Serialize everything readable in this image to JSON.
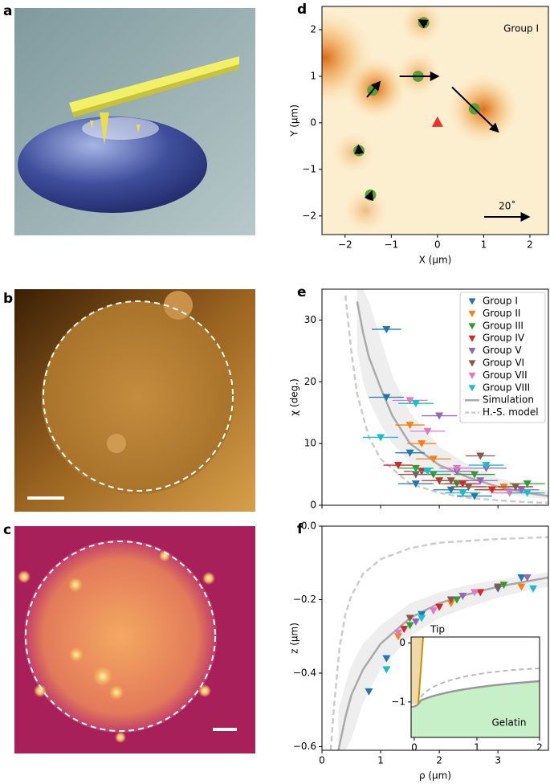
{
  "panel_labels": [
    "a",
    "b",
    "c"
  ],
  "chart_data": [
    {
      "type": "vector",
      "label": "d",
      "xlabel": "X (µm)",
      "ylabel": "Y (µm)",
      "annotation": "Group I",
      "xlim": [
        -2.5,
        2.4
      ],
      "ylim": [
        -2.4,
        2.5
      ],
      "xticks": [
        {
          "value": -2,
          "label": "−2"
        },
        {
          "value": -1,
          "label": "−1"
        },
        0,
        1,
        2
      ],
      "yticks": [
        {
          "value": -2,
          "label": "−2"
        },
        {
          "value": -1,
          "label": "−1"
        },
        0,
        1,
        2
      ],
      "points": {
        "color": "#5a9e3c",
        "x": [
          -0.3,
          -1.4,
          -0.42,
          0.8,
          -1.7,
          -1.45
        ],
        "y": [
          2.15,
          0.7,
          1.0,
          0.3,
          -0.6,
          -1.55
        ],
        "chi": [
          3,
          8,
          16,
          27,
          3,
          1.5
        ],
        "angle": [
          150,
          50,
          0,
          -44,
          95,
          70
        ]
      },
      "tip": {
        "x": 0,
        "y": 0,
        "color": "#e8322a"
      },
      "scale": {
        "value": 20,
        "label": "20˚"
      }
    },
    {
      "type": "errorbar",
      "label": "e",
      "ylabel": "χ (deg.)",
      "legend": "upper right",
      "xlim": [
        0,
        3.86
      ],
      "ylim": [
        0,
        35
      ],
      "xticks": [
        0,
        1,
        2,
        3
      ],
      "xticklabels": false,
      "yticks": [
        0,
        10,
        20,
        30
      ],
      "series": [
        {
          "name": "Group I",
          "color": "#1f77b4",
          "x": [
            1.1,
            1.1,
            1.5,
            1.6,
            2.2,
            2.6
          ],
          "values": [
            28.5,
            17.5,
            8.5,
            3.5,
            2.5,
            1.5
          ],
          "xerr": [
            0.25,
            0.3,
            0.25,
            0.3,
            0.3,
            0.3
          ]
        },
        {
          "name": "Group II",
          "color": "#ff7f0e",
          "x": [
            1.5,
            1.7,
            1.9,
            2.3,
            2.9,
            3.1
          ],
          "values": [
            13,
            10,
            7.5,
            3.5,
            2.5,
            3
          ],
          "xerr": [
            0.25,
            0.25,
            0.3,
            0.3,
            0.3,
            0.3
          ]
        },
        {
          "name": "Group III",
          "color": "#2ca02c",
          "x": [
            1.6,
            1.9,
            2.3,
            2.6,
            3.5
          ],
          "values": [
            6,
            5,
            3.5,
            5,
            3.5
          ],
          "xerr": [
            0.3,
            0.3,
            0.3,
            0.35,
            0.3
          ]
        },
        {
          "name": "Group IV",
          "color": "#d62728",
          "x": [
            1.3,
            1.7,
            2.0,
            2.4,
            2.9
          ],
          "values": [
            6.5,
            5.5,
            4,
            3.5,
            2.5
          ],
          "xerr": [
            0.25,
            0.3,
            0.3,
            0.3,
            0.3
          ]
        },
        {
          "name": "Group V",
          "color": "#9467bd",
          "x": [
            2.0,
            2.3,
            2.7,
            2.8,
            3.4
          ],
          "values": [
            14.5,
            5.5,
            4,
            6,
            2.5
          ],
          "xerr": [
            0.3,
            0.3,
            0.3,
            0.35,
            0.3
          ]
        },
        {
          "name": "Group VI",
          "color": "#8c564b",
          "x": [
            1.6,
            2.2,
            2.5,
            2.7,
            3.3
          ],
          "values": [
            5,
            4,
            3,
            8,
            3
          ],
          "xerr": [
            0.3,
            0.3,
            0.3,
            0.25,
            0.3
          ]
        },
        {
          "name": "Group VII",
          "color": "#e377c2",
          "x": [
            1.5,
            1.8,
            2.3,
            3.2
          ],
          "values": [
            17,
            12,
            6,
            2
          ],
          "xerr": [
            0.3,
            0.3,
            0.3,
            0.3
          ]
        },
        {
          "name": "Group VIII",
          "color": "#17becf",
          "x": [
            1.0,
            1.6,
            1.8,
            2.4,
            2.8,
            3.5
          ],
          "values": [
            11,
            16.5,
            5.5,
            2,
            6.5,
            2
          ],
          "xerr": [
            0.3,
            0.3,
            0.3,
            0.3,
            0.3,
            0.3
          ]
        }
      ],
      "lines": [
        {
          "name": "Simulation",
          "color": "#aaaaaa",
          "dash": false,
          "x": [
            0.6,
            0.7,
            0.8,
            1.0,
            1.2,
            1.5,
            2.0,
            2.5,
            3.0,
            3.5,
            3.86
          ],
          "values": [
            33,
            28,
            24,
            19,
            14.5,
            10,
            6.5,
            4.5,
            3,
            2,
            1.5
          ]
        },
        {
          "name": "H.-S. model",
          "color": "#cccccc",
          "dash": true,
          "x": [
            0.4,
            0.5,
            0.6,
            0.8,
            1.0,
            1.5,
            2.0,
            2.5,
            3.0,
            3.5,
            3.86
          ],
          "values": [
            34,
            25,
            18,
            11,
            7.5,
            3.5,
            2,
            1.2,
            0.8,
            0.5,
            0.4
          ]
        }
      ],
      "band": {
        "color": "#eeeeee",
        "x": [
          0.6,
          0.7,
          0.8,
          1.0,
          1.2,
          1.5,
          2.0,
          2.5,
          3.0,
          3.5,
          3.86
        ],
        "upper": [
          35,
          35,
          33,
          27,
          21,
          15,
          9.5,
          6.5,
          4.5,
          3,
          2.3
        ],
        "lower": [
          25,
          20,
          17,
          13,
          10,
          7,
          4.5,
          3,
          2,
          1.3,
          1
        ]
      }
    },
    {
      "type": "scatter",
      "label": "f",
      "xlabel": "ρ (µm)",
      "ylabel": "z (µm)",
      "xlim": [
        0,
        3.86
      ],
      "ylim": [
        -0.61,
        0
      ],
      "xticks": [
        0,
        1,
        2,
        3
      ],
      "yticks": [
        {
          "value": -0.6,
          "label": "−0.6"
        },
        {
          "value": -0.4,
          "label": "−0.4"
        },
        {
          "value": -0.2,
          "label": "−0.2"
        },
        {
          "value": 0,
          "label": "0.0"
        }
      ],
      "series": [
        {
          "color": "#1f77b4",
          "x": [
            0.8,
            1.1,
            1.7,
            3.0,
            3.4
          ],
          "values": [
            -0.45,
            -0.36,
            -0.24,
            -0.17,
            -0.14
          ]
        },
        {
          "color": "#ff7f0e",
          "x": [
            1.3,
            2.2,
            3.4
          ],
          "values": [
            -0.3,
            -0.21,
            -0.165
          ]
        },
        {
          "color": "#2ca02c",
          "x": [
            1.5,
            2.3,
            3.1
          ],
          "values": [
            -0.27,
            -0.2,
            -0.16
          ]
        },
        {
          "color": "#d62728",
          "x": [
            1.4,
            2.0,
            2.7
          ],
          "values": [
            -0.28,
            -0.22,
            -0.18
          ]
        },
        {
          "color": "#9467bd",
          "x": [
            1.6,
            2.4,
            3.5
          ],
          "values": [
            -0.26,
            -0.19,
            -0.14
          ]
        },
        {
          "color": "#8c564b",
          "x": [
            1.5,
            2.2,
            3.0
          ],
          "values": [
            -0.25,
            -0.2,
            -0.165
          ]
        },
        {
          "color": "#e377c2",
          "x": [
            1.3,
            1.9,
            2.6
          ],
          "values": [
            -0.29,
            -0.23,
            -0.18
          ]
        },
        {
          "color": "#17becf",
          "x": [
            1.1,
            1.7,
            3.6
          ],
          "values": [
            -0.39,
            -0.25,
            -0.17
          ]
        }
      ],
      "lines": [
        {
          "color": "#aaaaaa",
          "dash": false,
          "x": [
            0.28,
            0.4,
            0.5,
            0.7,
            1.0,
            1.5,
            2.0,
            2.5,
            3.0,
            3.5,
            3.86
          ],
          "values": [
            -0.61,
            -0.52,
            -0.46,
            -0.39,
            -0.32,
            -0.25,
            -0.21,
            -0.185,
            -0.165,
            -0.15,
            -0.14
          ]
        },
        {
          "color": "#cccccc",
          "dash": true,
          "x": [
            0.15,
            0.2,
            0.3,
            0.4,
            0.5,
            0.7,
            1.0,
            1.5,
            2.0,
            3.0,
            3.86
          ],
          "values": [
            -0.61,
            -0.5,
            -0.33,
            -0.24,
            -0.19,
            -0.13,
            -0.09,
            -0.06,
            -0.045,
            -0.035,
            -0.03
          ]
        }
      ],
      "band": {
        "color": "#eeeeee",
        "x": [
          0.28,
          0.4,
          0.5,
          0.7,
          1.0,
          1.5,
          2.0,
          2.5,
          3.0,
          3.5,
          3.86
        ],
        "upper": [
          -0.5,
          -0.43,
          -0.38,
          -0.32,
          -0.27,
          -0.21,
          -0.18,
          -0.16,
          -0.145,
          -0.135,
          -0.125
        ],
        "lower": [
          -0.61,
          -0.61,
          -0.58,
          -0.48,
          -0.39,
          -0.3,
          -0.25,
          -0.22,
          -0.195,
          -0.175,
          -0.165
        ]
      },
      "inset": {
        "xlim": [
          -0.05,
          2.0
        ],
        "ylim": [
          -1.6,
          0.1
        ],
        "xticks": [
          0,
          1,
          2
        ],
        "yticks": [
          0,
          {
            "value": -1,
            "label": "−1"
          }
        ],
        "annotations": [
          "Tip",
          "Gelatin"
        ]
      }
    }
  ]
}
